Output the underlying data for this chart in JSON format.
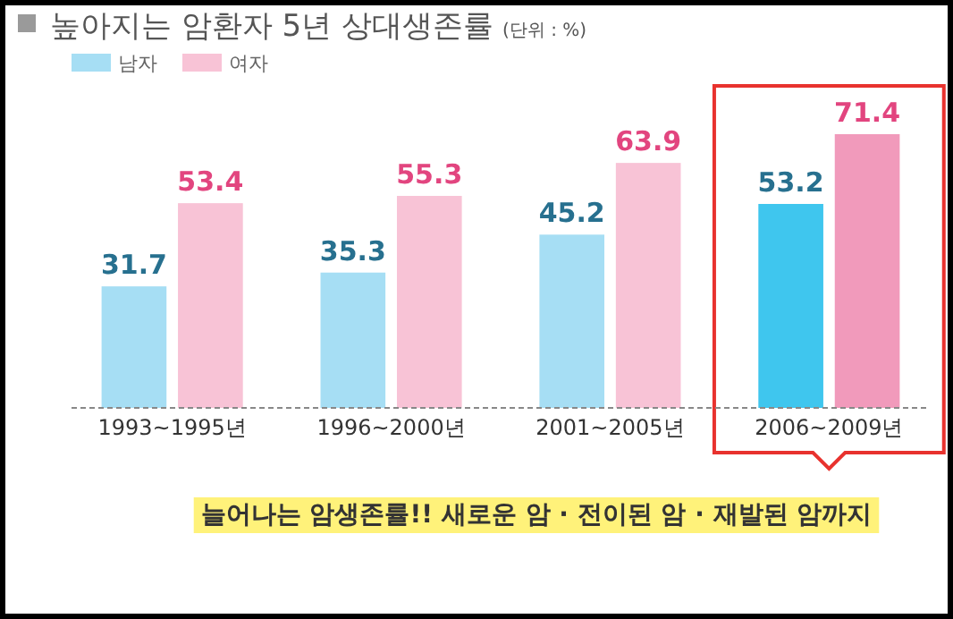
{
  "chart_data": {
    "type": "bar",
    "title": "높아지는 암환자 5년 상대생존률",
    "subtitle": "(단위 : %)",
    "categories": [
      "1993~1995년",
      "1996~2000년",
      "2001~2005년",
      "2006~2009년"
    ],
    "series": [
      {
        "name": "남자",
        "color": "#a6def4",
        "colors": [
          "#a6def4",
          "#a6def4",
          "#a6def4",
          "#3fc6ee"
        ],
        "values": [
          31.7,
          35.3,
          45.2,
          53.2
        ]
      },
      {
        "name": "여자",
        "color": "#f8c3d6",
        "colors": [
          "#f8c3d6",
          "#f8c3d6",
          "#f8c3d6",
          "#f19abb"
        ],
        "values": [
          53.4,
          55.3,
          63.9,
          71.4
        ]
      }
    ],
    "data_labels": true,
    "legend": "top left",
    "annotations": [
      "늘어나는 암생존률!! 새로운 암 · 전이된 암 · 재발된 암까지"
    ]
  }
}
